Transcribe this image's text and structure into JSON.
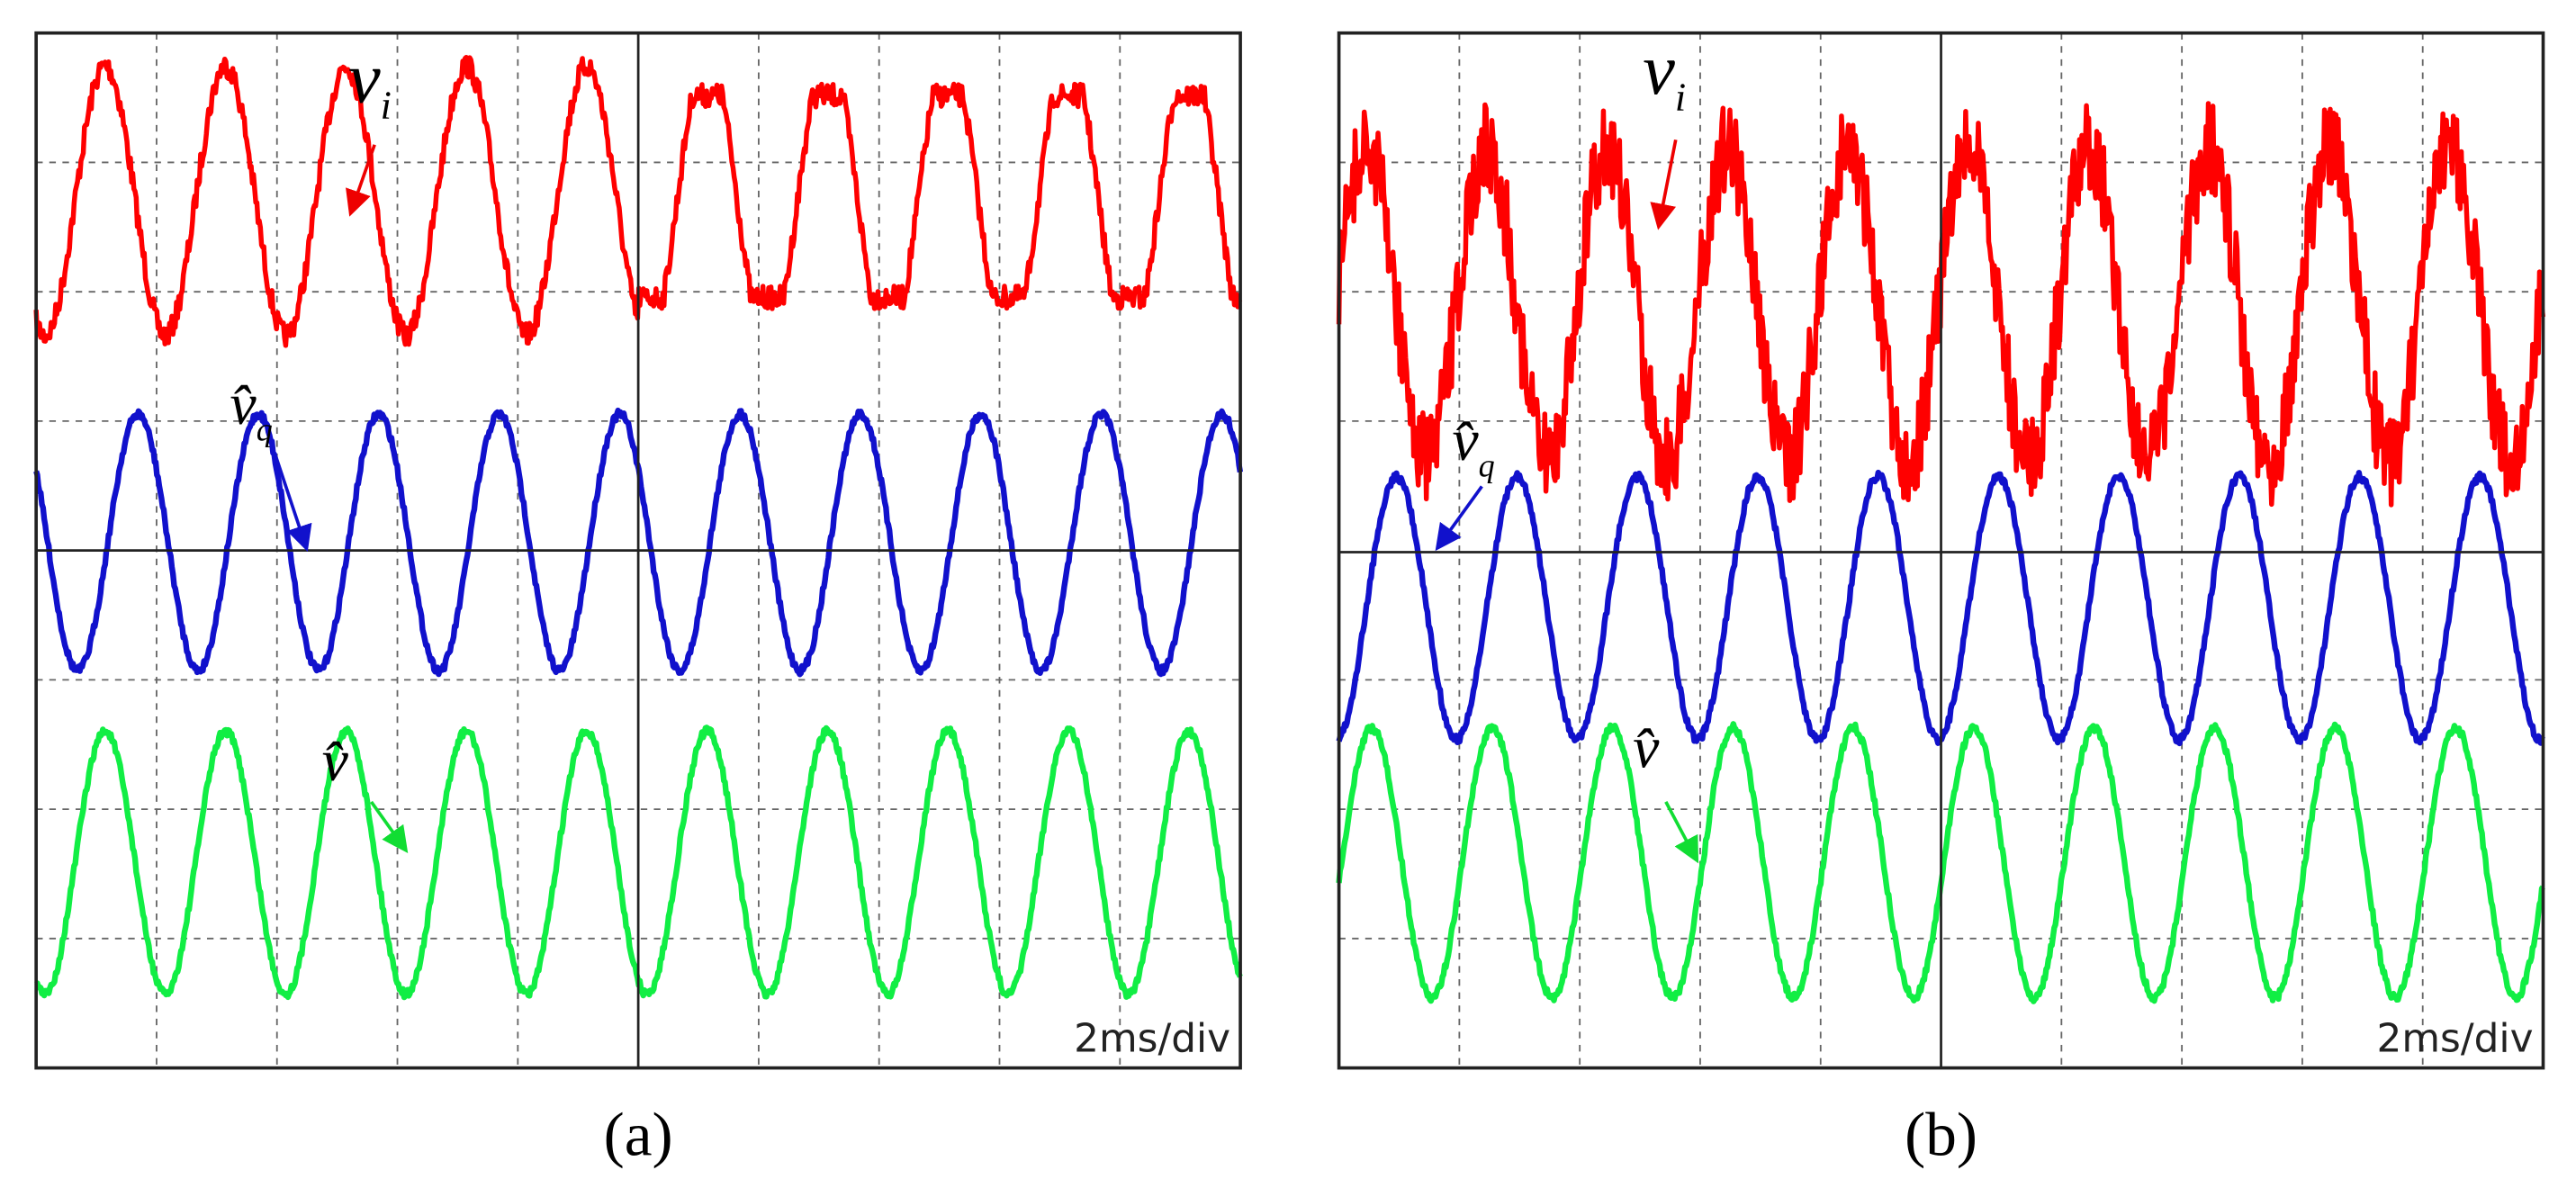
{
  "panels": [
    {
      "label": "(a)",
      "time_scale": "2ms/div",
      "traces": [
        {
          "label": "v",
          "subscript": "i"
        },
        {
          "label": "v̂",
          "subscript": "q"
        },
        {
          "label": "v̂"
        }
      ]
    },
    {
      "label": "(b)",
      "time_scale": "2ms/div",
      "traces": [
        {
          "label": "v",
          "subscript": "i"
        },
        {
          "label": "v̂",
          "subscript": "q"
        },
        {
          "label": "v̂"
        }
      ]
    }
  ]
}
